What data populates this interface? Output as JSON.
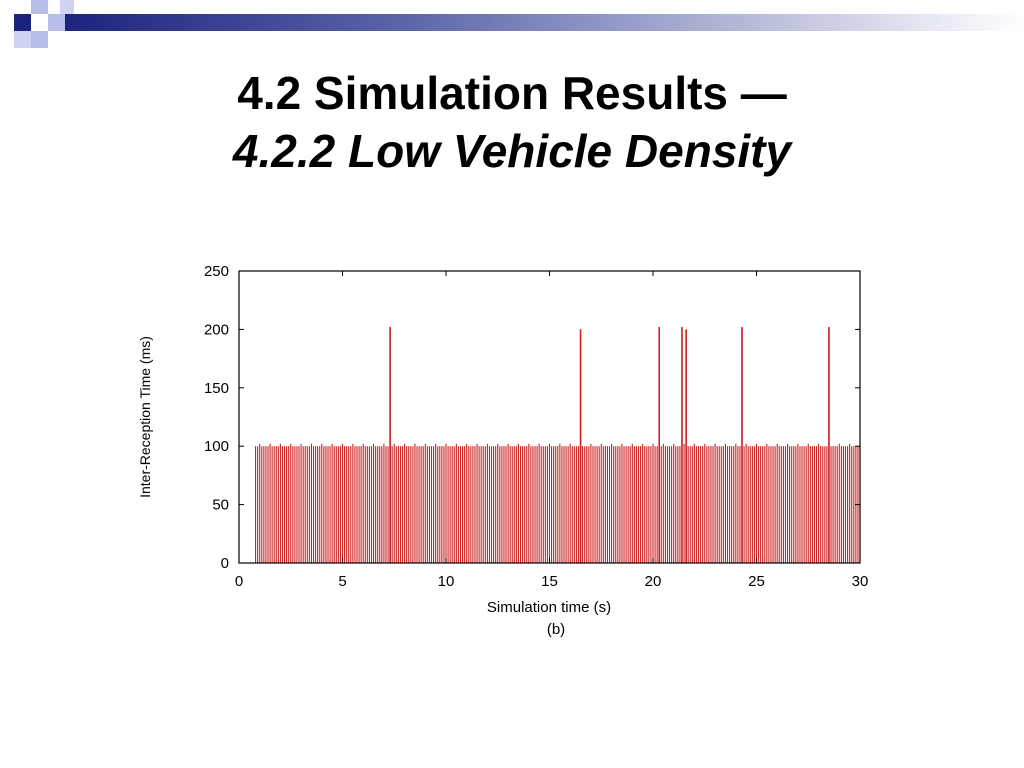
{
  "slide": {
    "title_main": "4.2 Simulation Results ―",
    "title_sub": "4.2.2 Low Vehicle Density"
  },
  "theme": {
    "accent": "#1a237e",
    "square_light": "#b7bde6",
    "bar_color": "#cc2222"
  },
  "chart_data": {
    "type": "bar",
    "xlabel": "Simulation time (s)",
    "ylabel": "Inter-Reception Time (ms)",
    "caption": "(b)",
    "xlim": [
      0,
      30
    ],
    "ylim": [
      0,
      250
    ],
    "x_ticks": [
      0,
      5,
      10,
      15,
      20,
      25,
      30
    ],
    "y_ticks": [
      0,
      50,
      100,
      150,
      200,
      250
    ],
    "grid": false,
    "baseline_interval_s": 0.1,
    "baseline_start_s": 0.8,
    "baseline_end_s": 30,
    "baseline_value_ms": 100,
    "spikes": [
      {
        "x": 7.3,
        "y": 202
      },
      {
        "x": 16.5,
        "y": 200
      },
      {
        "x": 20.3,
        "y": 202
      },
      {
        "x": 21.4,
        "y": 202
      },
      {
        "x": 21.6,
        "y": 200
      },
      {
        "x": 24.3,
        "y": 202
      },
      {
        "x": 28.5,
        "y": 202
      }
    ]
  }
}
